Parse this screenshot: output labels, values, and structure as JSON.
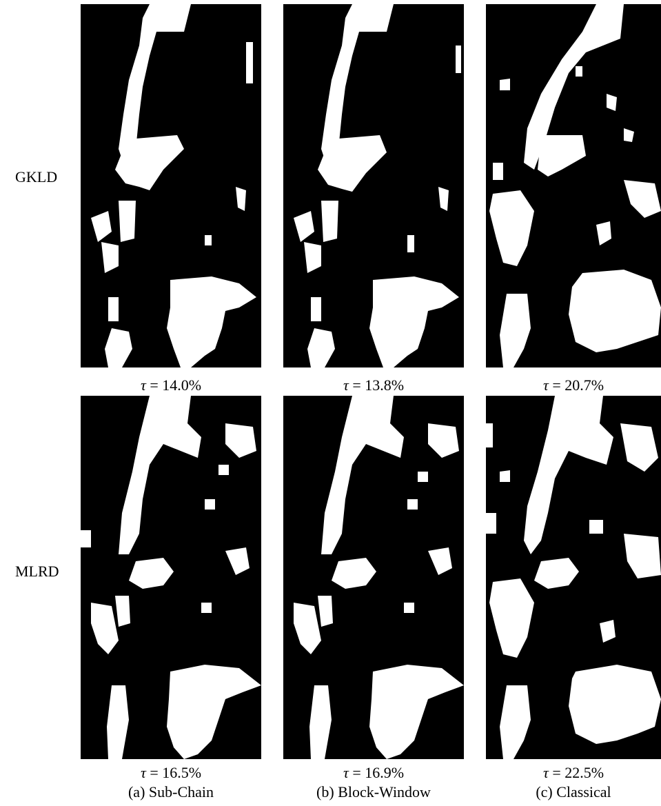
{
  "figure": {
    "rows": [
      {
        "label": "GKLD",
        "panels": [
          {
            "caption_symbol": "τ",
            "caption_eq": "=",
            "caption_value": "14.0%"
          },
          {
            "caption_symbol": "τ",
            "caption_eq": "=",
            "caption_value": "13.8%"
          },
          {
            "caption_symbol": "τ",
            "caption_eq": "=",
            "caption_value": "20.7%"
          }
        ]
      },
      {
        "label": "MLRD",
        "panels": [
          {
            "caption_symbol": "τ",
            "caption_eq": "=",
            "caption_value": "16.5%"
          },
          {
            "caption_symbol": "τ",
            "caption_eq": "=",
            "caption_value": "16.9%"
          },
          {
            "caption_symbol": "τ",
            "caption_eq": "=",
            "caption_value": "22.5%"
          }
        ]
      }
    ],
    "column_captions": [
      "(a) Sub-Chain",
      "(b) Block-Window",
      "(c) Classical"
    ],
    "colors": {
      "background": "#000000",
      "foreground": "#ffffff"
    }
  }
}
